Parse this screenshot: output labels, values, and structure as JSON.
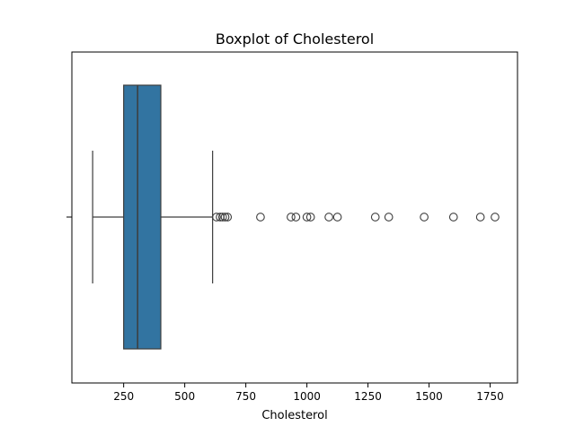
{
  "chart_data": {
    "type": "boxplot",
    "title": "Boxplot of Cholesterol",
    "xlabel": "Cholesterol",
    "ylabel": "",
    "xlim": [
      38,
      1862
    ],
    "x_ticks": [
      250,
      500,
      750,
      1000,
      1250,
      1500,
      1750
    ],
    "x_tick_labels": [
      "250",
      "500",
      "750",
      "1000",
      "1250",
      "1500",
      "1750"
    ],
    "grid": false,
    "orientation": "horizontal",
    "colors": {
      "box_fill": "#3274a1",
      "line": "#3d3d3d",
      "axes": "#000000"
    },
    "box": {
      "whisker_low": 123,
      "q1": 250,
      "median": 307,
      "q3": 402,
      "whisker_high": 614
    },
    "outliers": [
      630,
      645,
      655,
      665,
      675,
      810,
      935,
      955,
      1000,
      1015,
      1090,
      1125,
      1280,
      1335,
      1480,
      1600,
      1710,
      1770
    ]
  }
}
